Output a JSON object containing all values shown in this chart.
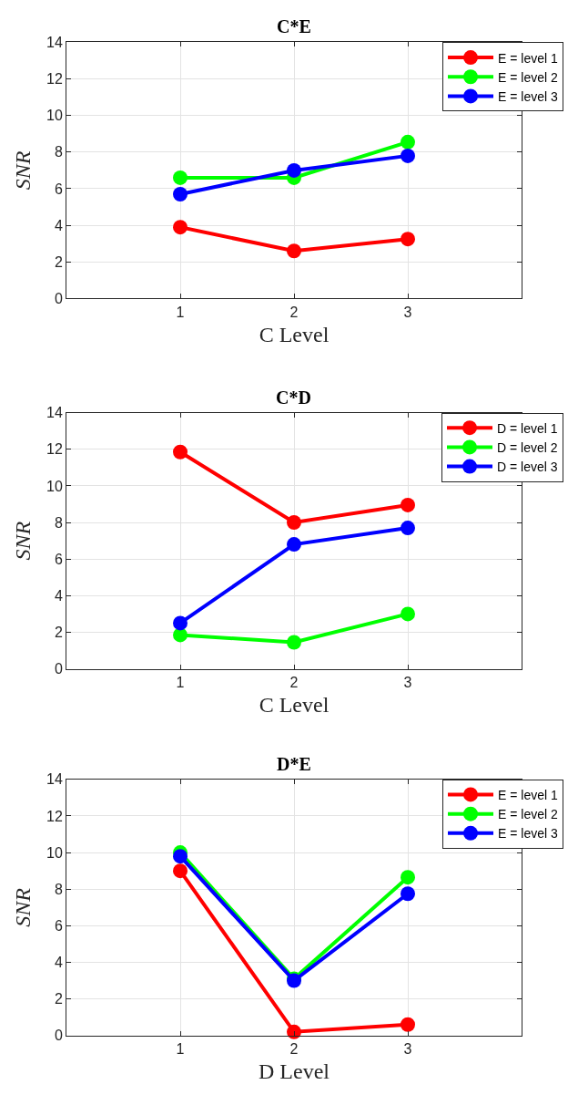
{
  "chart_data": [
    {
      "type": "line",
      "title": "C*E",
      "xlabel": "C Level",
      "ylabel": "SNR",
      "x": [
        1,
        2,
        3
      ],
      "xlim": [
        0,
        4
      ],
      "xticks": [
        1,
        2,
        3
      ],
      "ylim": [
        0,
        14
      ],
      "yticks": [
        0,
        2,
        4,
        6,
        8,
        10,
        12,
        14
      ],
      "grid": true,
      "legend": "top right",
      "marker": "circle",
      "line_style": "solid",
      "series": [
        {
          "name": "E = level 1",
          "color": "#ff0000",
          "values": [
            3.9,
            2.6,
            3.25
          ]
        },
        {
          "name": "E = level 2",
          "color": "#00ff00",
          "values": [
            6.6,
            6.6,
            8.55
          ]
        },
        {
          "name": "E = level 3",
          "color": "#0000ff",
          "values": [
            5.7,
            7.0,
            7.8
          ]
        }
      ]
    },
    {
      "type": "line",
      "title": "C*D",
      "xlabel": "C Level",
      "ylabel": "SNR",
      "x": [
        1,
        2,
        3
      ],
      "xlim": [
        0,
        4
      ],
      "xticks": [
        1,
        2,
        3
      ],
      "ylim": [
        0,
        14
      ],
      "yticks": [
        0,
        2,
        4,
        6,
        8,
        10,
        12,
        14
      ],
      "grid": true,
      "legend": "top right",
      "marker": "circle",
      "line_style": "solid",
      "series": [
        {
          "name": "D = level 1",
          "color": "#ff0000",
          "values": [
            11.85,
            8.0,
            8.95
          ]
        },
        {
          "name": "D = level 2",
          "color": "#00ff00",
          "values": [
            1.85,
            1.45,
            3.0
          ]
        },
        {
          "name": "D = level 3",
          "color": "#0000ff",
          "values": [
            2.5,
            6.8,
            7.7
          ]
        }
      ]
    },
    {
      "type": "line",
      "title": "D*E",
      "xlabel": "D Level",
      "ylabel": "SNR",
      "x": [
        1,
        2,
        3
      ],
      "xlim": [
        0,
        4
      ],
      "xticks": [
        1,
        2,
        3
      ],
      "ylim": [
        0,
        14
      ],
      "yticks": [
        0,
        2,
        4,
        6,
        8,
        10,
        12,
        14
      ],
      "grid": true,
      "legend": "top right",
      "marker": "circle",
      "line_style": "solid",
      "series": [
        {
          "name": "E = level 1",
          "color": "#ff0000",
          "values": [
            9.0,
            0.2,
            0.6
          ]
        },
        {
          "name": "E = level 2",
          "color": "#00ff00",
          "values": [
            10.0,
            3.1,
            8.65
          ]
        },
        {
          "name": "E = level 3",
          "color": "#0000ff",
          "values": [
            9.8,
            3.0,
            7.75
          ]
        }
      ]
    }
  ]
}
